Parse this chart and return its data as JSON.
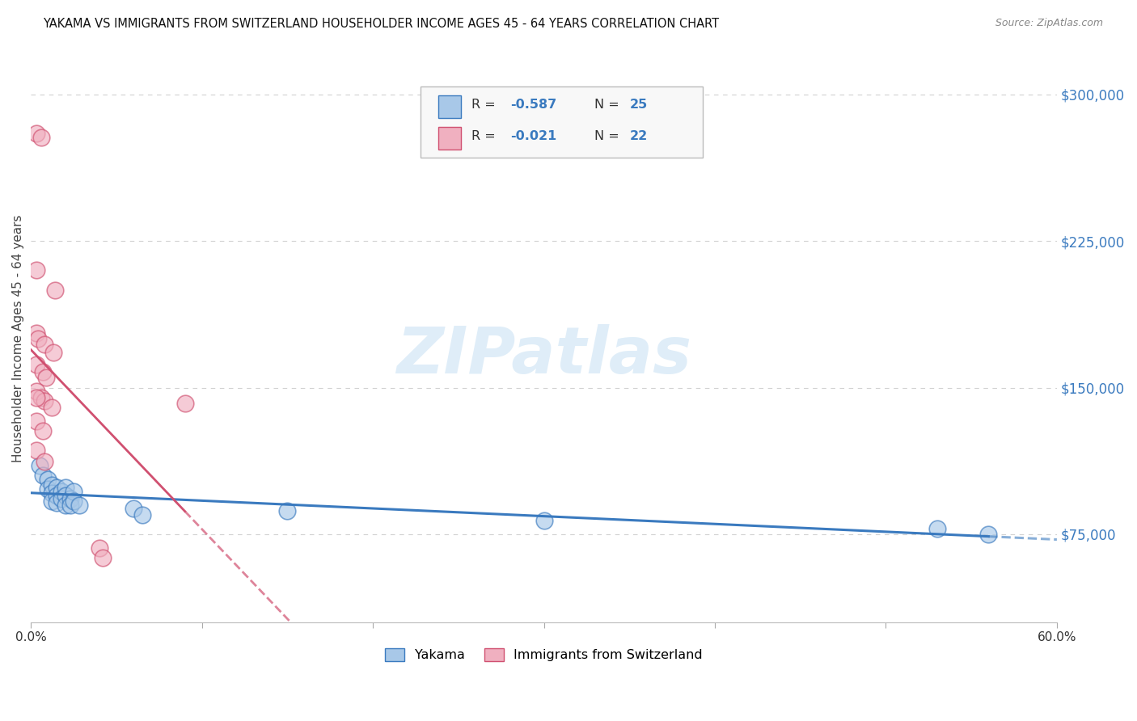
{
  "title": "YAKAMA VS IMMIGRANTS FROM SWITZERLAND HOUSEHOLDER INCOME AGES 45 - 64 YEARS CORRELATION CHART",
  "source": "Source: ZipAtlas.com",
  "ylabel": "Householder Income Ages 45 - 64 years",
  "xlim": [
    0.0,
    0.6
  ],
  "ylim": [
    30000,
    320000
  ],
  "yticks": [
    75000,
    150000,
    225000,
    300000
  ],
  "ytick_labels": [
    "$75,000",
    "$150,000",
    "$225,000",
    "$300,000"
  ],
  "xticks": [
    0.0,
    0.1,
    0.2,
    0.3,
    0.4,
    0.5,
    0.6
  ],
  "xtick_labels": [
    "0.0%",
    "",
    "",
    "",
    "",
    "",
    "60.0%"
  ],
  "background_color": "#ffffff",
  "grid_color": "#cccccc",
  "watermark": "ZIPatlas",
  "color_blue": "#a8c8e8",
  "color_pink": "#f0b0c0",
  "line_blue": "#3a7abf",
  "line_pink": "#d05070",
  "legend_box_color": "#f0f0f0",
  "legend_box_edge": "#cccccc",
  "yakama_scatter": [
    [
      0.005,
      110000
    ],
    [
      0.007,
      105000
    ],
    [
      0.01,
      103000
    ],
    [
      0.01,
      98000
    ],
    [
      0.012,
      100000
    ],
    [
      0.012,
      96000
    ],
    [
      0.012,
      92000
    ],
    [
      0.015,
      99000
    ],
    [
      0.015,
      95000
    ],
    [
      0.015,
      91000
    ],
    [
      0.018,
      97000
    ],
    [
      0.018,
      93000
    ],
    [
      0.02,
      99000
    ],
    [
      0.02,
      95000
    ],
    [
      0.02,
      90000
    ],
    [
      0.023,
      93000
    ],
    [
      0.023,
      90000
    ],
    [
      0.025,
      97000
    ],
    [
      0.025,
      92000
    ],
    [
      0.028,
      90000
    ],
    [
      0.06,
      88000
    ],
    [
      0.065,
      85000
    ],
    [
      0.15,
      87000
    ],
    [
      0.3,
      82000
    ],
    [
      0.53,
      78000
    ],
    [
      0.56,
      75000
    ]
  ],
  "swiss_scatter": [
    [
      0.003,
      280000
    ],
    [
      0.006,
      278000
    ],
    [
      0.003,
      210000
    ],
    [
      0.014,
      200000
    ],
    [
      0.003,
      178000
    ],
    [
      0.004,
      175000
    ],
    [
      0.008,
      172000
    ],
    [
      0.013,
      168000
    ],
    [
      0.003,
      162000
    ],
    [
      0.007,
      158000
    ],
    [
      0.009,
      155000
    ],
    [
      0.003,
      148000
    ],
    [
      0.006,
      145000
    ],
    [
      0.008,
      143000
    ],
    [
      0.012,
      140000
    ],
    [
      0.003,
      133000
    ],
    [
      0.007,
      128000
    ],
    [
      0.003,
      118000
    ],
    [
      0.008,
      112000
    ],
    [
      0.003,
      145000
    ],
    [
      0.09,
      142000
    ],
    [
      0.04,
      68000
    ],
    [
      0.042,
      63000
    ]
  ]
}
